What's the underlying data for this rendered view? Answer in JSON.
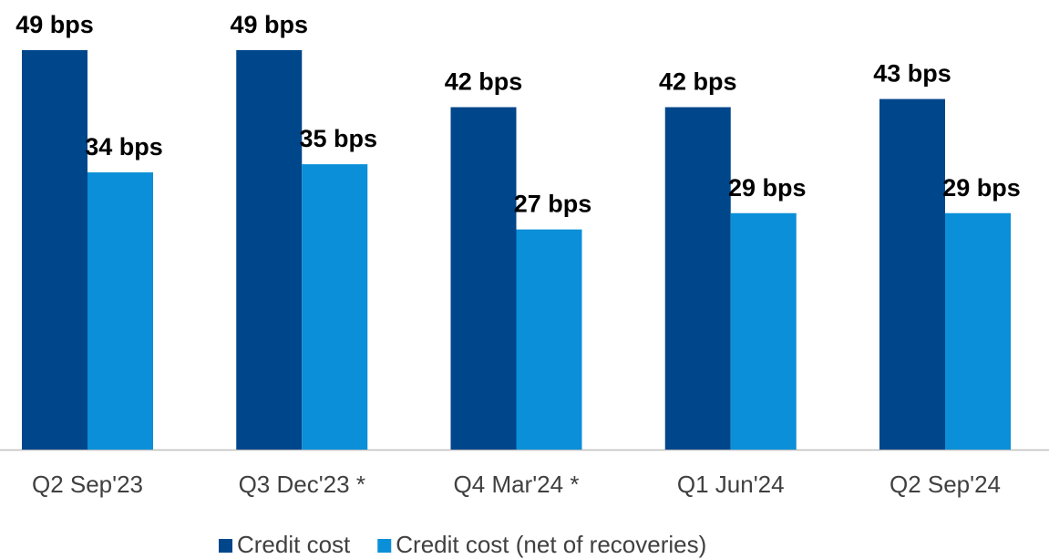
{
  "chart_data": {
    "type": "bar",
    "categories": [
      "Q2 Sep'23",
      "Q3 Dec'23 *",
      "Q4 Mar'24 *",
      "Q1 Jun'24",
      "Q2 Sep'24"
    ],
    "series": [
      {
        "name": "Credit cost",
        "color": "#00468b",
        "values": [
          49,
          49,
          42,
          42,
          43
        ],
        "value_labels": [
          "49 bps",
          "49 bps",
          "42 bps",
          "42 bps",
          "43 bps"
        ]
      },
      {
        "name": "Credit cost (net of recoveries)",
        "color": "#0a8fd8",
        "values": [
          34,
          35,
          27,
          29,
          29
        ],
        "value_labels": [
          "34 bps",
          "35 bps",
          "27 bps",
          "29 bps",
          "29 bps"
        ]
      }
    ],
    "legend": "bottom"
  }
}
